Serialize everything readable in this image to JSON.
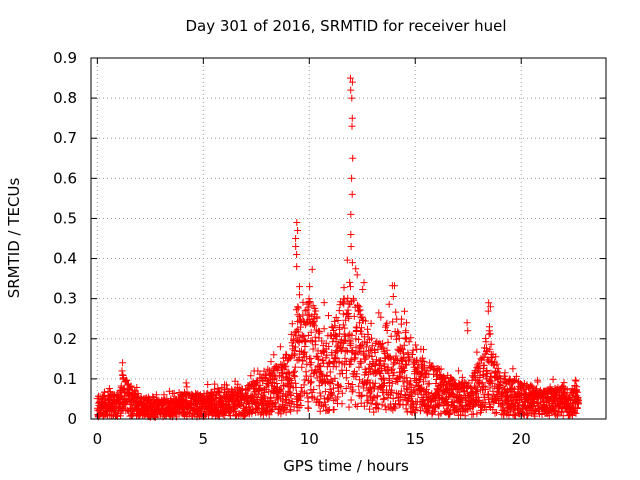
{
  "chart_data": {
    "type": "scatter",
    "title": "Day 301 of 2016, SRMTID for receiver huel",
    "xlabel": "GPS time / hours",
    "ylabel": "SRMTID / TECUs",
    "xlim": [
      -0.3,
      24
    ],
    "ylim": [
      0,
      0.9
    ],
    "xticks": [
      0,
      5,
      10,
      15,
      20
    ],
    "yticks": [
      0,
      0.1,
      0.2,
      0.3,
      0.4,
      0.5,
      0.6,
      0.7,
      0.8,
      0.9
    ],
    "xtick_labels": [
      "0",
      "5",
      "10",
      "15",
      "20"
    ],
    "ytick_labels": [
      "0",
      "0.1",
      "0.2",
      "0.3",
      "0.4",
      "0.5",
      "0.6",
      "0.7",
      "0.8",
      "0.9"
    ],
    "grid": true,
    "marker": "+",
    "color": "#ff0000",
    "series": [
      {
        "name": "SRMTID",
        "baseline_profile": [
          [
            0.0,
            0.03
          ],
          [
            1.0,
            0.035
          ],
          [
            1.2,
            0.06
          ],
          [
            2.0,
            0.03
          ],
          [
            3.0,
            0.025
          ],
          [
            4.0,
            0.035
          ],
          [
            5.0,
            0.035
          ],
          [
            6.0,
            0.04
          ],
          [
            7.0,
            0.045
          ],
          [
            8.0,
            0.06
          ],
          [
            9.0,
            0.09
          ],
          [
            9.5,
            0.13
          ],
          [
            10.0,
            0.17
          ],
          [
            10.5,
            0.13
          ],
          [
            11.0,
            0.12
          ],
          [
            11.5,
            0.16
          ],
          [
            12.0,
            0.17
          ],
          [
            12.5,
            0.15
          ],
          [
            13.0,
            0.1
          ],
          [
            13.5,
            0.12
          ],
          [
            14.0,
            0.15
          ],
          [
            14.5,
            0.12
          ],
          [
            15.0,
            0.08
          ],
          [
            15.5,
            0.08
          ],
          [
            16.0,
            0.07
          ],
          [
            17.0,
            0.05
          ],
          [
            17.5,
            0.05
          ],
          [
            18.0,
            0.08
          ],
          [
            18.5,
            0.12
          ],
          [
            19.0,
            0.06
          ],
          [
            20.0,
            0.05
          ],
          [
            21.0,
            0.04
          ],
          [
            22.0,
            0.045
          ],
          [
            22.7,
            0.04
          ]
        ],
        "peaks": [
          {
            "x": 1.2,
            "y": [
              0.14,
              0.12,
              0.11,
              0.1
            ]
          },
          {
            "x": 4.2,
            "y": [
              0.09,
              0.08
            ]
          },
          {
            "x": 8.3,
            "y": [
              0.16
            ]
          },
          {
            "x": 9.4,
            "y": [
              0.49,
              0.47,
              0.45,
              0.43,
              0.41,
              0.38
            ]
          },
          {
            "x": 9.5,
            "y": [
              0.33,
              0.31,
              0.28,
              0.26
            ]
          },
          {
            "x": 10.0,
            "y": [
              0.33,
              0.3,
              0.26,
              0.24
            ]
          },
          {
            "x": 12.0,
            "y": [
              0.85,
              0.84,
              0.82,
              0.8,
              0.75,
              0.73,
              0.65,
              0.6,
              0.56,
              0.51,
              0.46,
              0.43,
              0.39,
              0.33
            ]
          },
          {
            "x": 12.4,
            "y": [
              0.28,
              0.27,
              0.26
            ]
          },
          {
            "x": 14.6,
            "y": [
              0.24,
              0.22,
              0.2
            ]
          },
          {
            "x": 17.5,
            "y": [
              0.24,
              0.22
            ]
          },
          {
            "x": 18.5,
            "y": [
              0.29,
              0.28,
              0.23,
              0.22
            ]
          }
        ]
      }
    ]
  }
}
